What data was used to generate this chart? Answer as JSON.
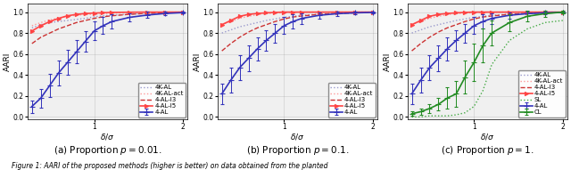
{
  "x_values": [
    0.3,
    0.4,
    0.5,
    0.6,
    0.7,
    0.8,
    0.9,
    1.0,
    1.1,
    1.2,
    1.4,
    1.6,
    1.8,
    2.0
  ],
  "subplot_captions": [
    "(a) Proportion $p = 0.01$.",
    "(b) Proportion $p = 0.1$.",
    "(c) Proportion $p = 1$."
  ],
  "figure_caption": "Figure 1: AARI of the proposed methods (higher is better) on data obtained from the planted",
  "ylabel": "AARI",
  "xlabel": "$\\delta/\\sigma$",
  "series": {
    "4K-AL": {
      "color": "#9999CC",
      "linestyle": "dotted",
      "marker": "None",
      "markersize": 2,
      "linewidth": 1.0,
      "data_p001": [
        0.85,
        0.88,
        0.9,
        0.91,
        0.92,
        0.93,
        0.94,
        0.955,
        0.965,
        0.97,
        0.98,
        0.987,
        0.993,
        0.997
      ],
      "data_p01": [
        0.8,
        0.83,
        0.86,
        0.88,
        0.9,
        0.92,
        0.935,
        0.95,
        0.96,
        0.97,
        0.98,
        0.99,
        0.993,
        0.997
      ],
      "data_p1": [
        0.8,
        0.83,
        0.86,
        0.88,
        0.9,
        0.92,
        0.935,
        0.95,
        0.96,
        0.97,
        0.98,
        0.99,
        0.993,
        0.997
      ]
    },
    "4K-AL-act": {
      "color": "#FF9999",
      "linestyle": "dotted",
      "marker": "None",
      "markersize": 2,
      "linewidth": 1.0,
      "data_p001": [
        0.87,
        0.9,
        0.925,
        0.945,
        0.96,
        0.97,
        0.975,
        0.98,
        0.985,
        0.99,
        0.995,
        0.997,
        0.999,
        1.0
      ],
      "data_p01": [
        0.88,
        0.91,
        0.94,
        0.96,
        0.975,
        0.985,
        0.99,
        0.995,
        0.997,
        0.999,
        1.0,
        1.0,
        1.0,
        1.0
      ],
      "data_p1": [
        0.88,
        0.91,
        0.94,
        0.96,
        0.975,
        0.985,
        0.99,
        0.995,
        0.997,
        0.999,
        1.0,
        1.0,
        1.0,
        1.0
      ]
    },
    "4-AL": {
      "color": "#3333BB",
      "linestyle": "solid",
      "marker": "+",
      "markersize": 4,
      "linewidth": 1.2,
      "data_p001": [
        0.1,
        0.18,
        0.3,
        0.42,
        0.52,
        0.62,
        0.72,
        0.82,
        0.87,
        0.91,
        0.95,
        0.972,
        0.987,
        0.995
      ],
      "err_p001": [
        0.06,
        0.09,
        0.11,
        0.12,
        0.12,
        0.11,
        0.1,
        0.09,
        0.08,
        0.07,
        0.04,
        0.03,
        0.02,
        0.01
      ],
      "data_p01": [
        0.22,
        0.35,
        0.47,
        0.56,
        0.65,
        0.73,
        0.8,
        0.87,
        0.91,
        0.94,
        0.97,
        0.985,
        0.993,
        0.997
      ],
      "err_p01": [
        0.1,
        0.12,
        0.12,
        0.12,
        0.11,
        0.1,
        0.09,
        0.08,
        0.07,
        0.05,
        0.03,
        0.02,
        0.01,
        0.005
      ],
      "data_p1": [
        0.22,
        0.35,
        0.47,
        0.56,
        0.65,
        0.73,
        0.8,
        0.87,
        0.91,
        0.94,
        0.97,
        0.985,
        0.993,
        0.997
      ],
      "err_p1": [
        0.1,
        0.12,
        0.12,
        0.12,
        0.11,
        0.1,
        0.09,
        0.08,
        0.07,
        0.05,
        0.03,
        0.02,
        0.01,
        0.005
      ]
    },
    "4-AL-I3": {
      "color": "#CC3333",
      "linestyle": "dashed",
      "marker": "None",
      "markersize": 2,
      "linewidth": 1.0,
      "data_p001": [
        0.7,
        0.76,
        0.8,
        0.84,
        0.87,
        0.9,
        0.92,
        0.94,
        0.955,
        0.965,
        0.979,
        0.988,
        0.993,
        0.997
      ],
      "data_p01": [
        0.63,
        0.7,
        0.76,
        0.81,
        0.85,
        0.88,
        0.91,
        0.935,
        0.953,
        0.963,
        0.979,
        0.988,
        0.993,
        0.997
      ],
      "data_p1": [
        0.63,
        0.7,
        0.76,
        0.81,
        0.85,
        0.88,
        0.91,
        0.935,
        0.953,
        0.963,
        0.979,
        0.988,
        0.993,
        0.997
      ]
    },
    "4-AL-I5": {
      "color": "#FF4444",
      "linestyle": "solid",
      "marker": ">",
      "markersize": 3,
      "linewidth": 1.2,
      "data_p001": [
        0.82,
        0.87,
        0.91,
        0.94,
        0.965,
        0.978,
        0.986,
        0.991,
        0.994,
        0.997,
        0.999,
        1.0,
        1.0,
        1.0
      ],
      "data_p01": [
        0.88,
        0.92,
        0.96,
        0.978,
        0.987,
        0.993,
        0.997,
        1.0,
        1.0,
        1.0,
        1.0,
        1.0,
        1.0,
        1.0
      ],
      "data_p1": [
        0.88,
        0.92,
        0.96,
        0.978,
        0.987,
        0.993,
        0.997,
        1.0,
        1.0,
        1.0,
        1.0,
        1.0,
        1.0,
        1.0
      ]
    },
    "CL": {
      "color": "#228B22",
      "linestyle": "solid",
      "marker": "+",
      "markersize": 4,
      "linewidth": 1.2,
      "data_p1": [
        0.03,
        0.05,
        0.08,
        0.12,
        0.18,
        0.22,
        0.38,
        0.52,
        0.68,
        0.8,
        0.9,
        0.96,
        0.985,
        1.0
      ],
      "err_p1": [
        0.02,
        0.03,
        0.04,
        0.06,
        0.1,
        0.12,
        0.16,
        0.18,
        0.16,
        0.12,
        0.08,
        0.05,
        0.03,
        0.01
      ]
    },
    "SL": {
      "color": "#44AA44",
      "linestyle": "dotted",
      "marker": "None",
      "markersize": 2,
      "linewidth": 1.0,
      "data_p1": [
        0.0,
        0.0,
        0.01,
        0.01,
        0.01,
        0.02,
        0.04,
        0.1,
        0.25,
        0.5,
        0.73,
        0.84,
        0.9,
        0.92
      ]
    }
  },
  "xlim": [
    0.25,
    2.05
  ],
  "ylim": [
    -0.02,
    1.08
  ],
  "xticks": [
    1.0,
    2.0
  ],
  "yticks": [
    0.0,
    0.2,
    0.4,
    0.6,
    0.8,
    1.0
  ],
  "bg_color": "#F0F0F0",
  "legend_fontsize": 5.0,
  "axis_fontsize": 6.5,
  "tick_fontsize": 5.5,
  "caption_fontsize": 7.5
}
